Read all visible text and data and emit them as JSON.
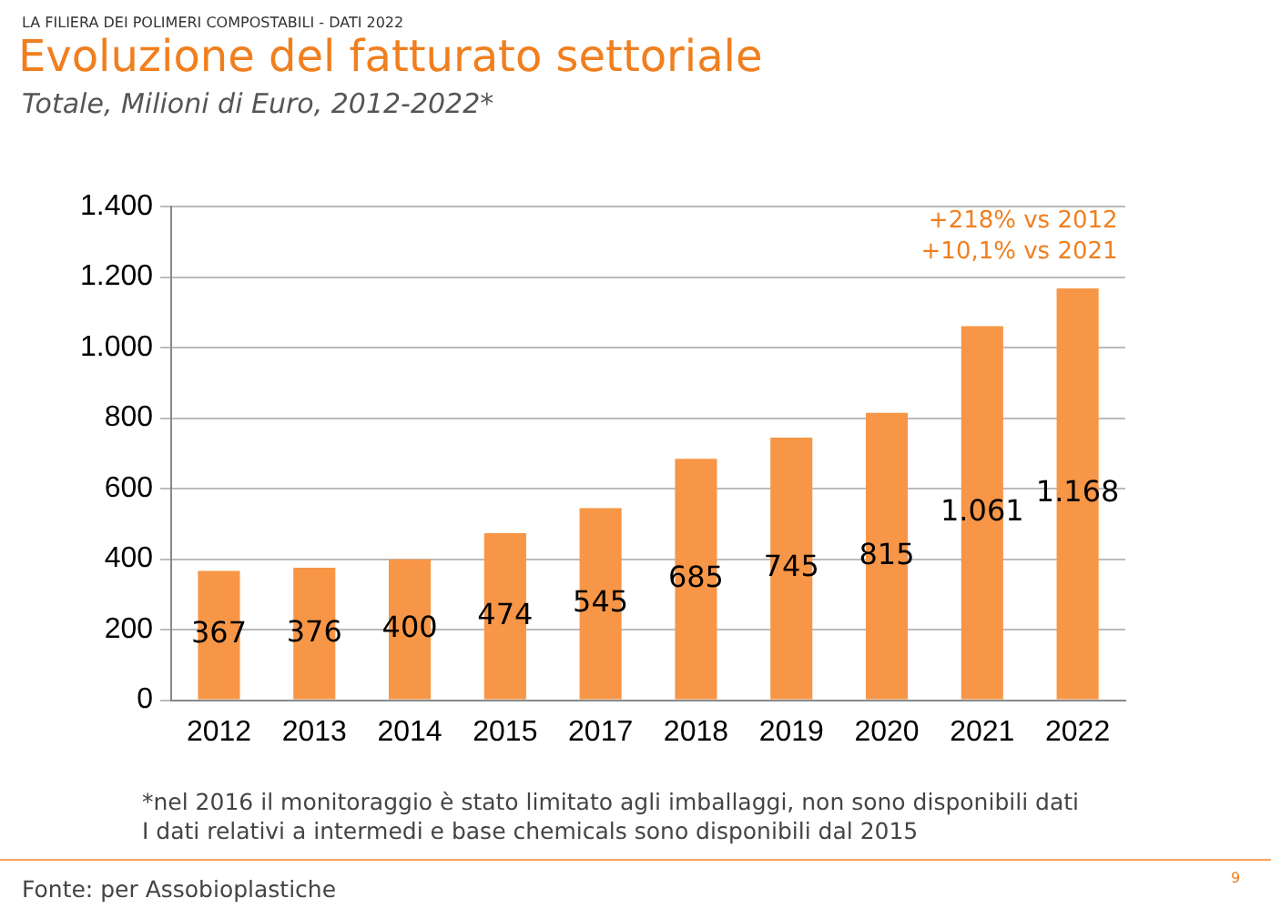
{
  "chart_data": {
    "type": "bar",
    "title": "Evoluzione del fatturato settoriale",
    "subtitle": "Totale, Milioni di Euro, 2012-2022*",
    "categories": [
      "2012",
      "2013",
      "2014",
      "2015",
      "2017",
      "2018",
      "2019",
      "2020",
      "2021",
      "2022"
    ],
    "values": [
      367,
      376,
      400,
      474,
      545,
      685,
      745,
      815,
      1061,
      1168
    ],
    "value_labels": [
      "367",
      "376",
      "400",
      "474",
      "545",
      "685",
      "745",
      "815",
      "1.061",
      "1.168"
    ],
    "color": "#f79646",
    "ylim": [
      0,
      1400
    ],
    "yticks": [
      {
        "value": 0,
        "label": "0"
      },
      {
        "value": 200,
        "label": "200"
      },
      {
        "value": 400,
        "label": "400"
      },
      {
        "value": 600,
        "label": "600"
      },
      {
        "value": 800,
        "label": "800"
      },
      {
        "value": 1000,
        "label": "1.000"
      },
      {
        "value": 1200,
        "label": "1.200"
      },
      {
        "value": 1400,
        "label": "1.400"
      }
    ],
    "grid": "y",
    "annotations": [
      "LA FILIERA DEI POLIMERI COMPOSTABILI - DATI 2022",
      {
        "text": "+218% vs 2012\n+10,1% vs 2021",
        "x": "2022",
        "y": 1168
      },
      "*nel 2016 il monitoraggio è stato limitato agli imballaggi, non sono disponibili dati\nI dati relativi a intermedi e base chemicals sono disponibili dal 2015",
      "Fonte: per Assobioplastiche",
      "9"
    ]
  }
}
